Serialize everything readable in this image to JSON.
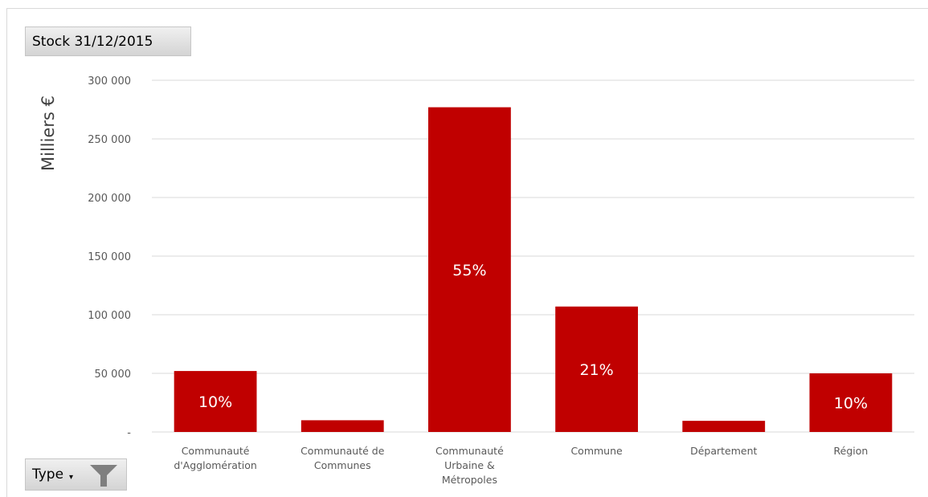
{
  "filters": {
    "stock_label": "Stock 31/12/2015",
    "type_label": "Type",
    "type_dropdown_glyph": "▾",
    "filter_icon": "funnel-icon"
  },
  "chart_data": {
    "type": "bar",
    "title": "",
    "xlabel": "",
    "ylabel": "Milliers €",
    "categories": [
      [
        "Communauté",
        "d'Agglomération"
      ],
      [
        "Communauté de",
        "Communes"
      ],
      [
        "Communauté",
        "Urbaine &",
        "Métropoles"
      ],
      [
        "Commune"
      ],
      [
        "Département"
      ],
      [
        "Région"
      ]
    ],
    "values": [
      52000,
      10000,
      277000,
      107000,
      9500,
      50000
    ],
    "data_labels": [
      "10%",
      "",
      "55%",
      "21%",
      "",
      "10%"
    ],
    "ylim": [
      0,
      300000
    ],
    "yticks": [
      0,
      50000,
      100000,
      150000,
      200000,
      250000,
      300000
    ],
    "ytick_labels": [
      "-",
      "50 000",
      "100 000",
      "150 000",
      "200 000",
      "250 000",
      "300 000"
    ],
    "grid": true,
    "legend": "none",
    "bar_color": "#c00000",
    "grid_color": "#d9d9d9"
  }
}
